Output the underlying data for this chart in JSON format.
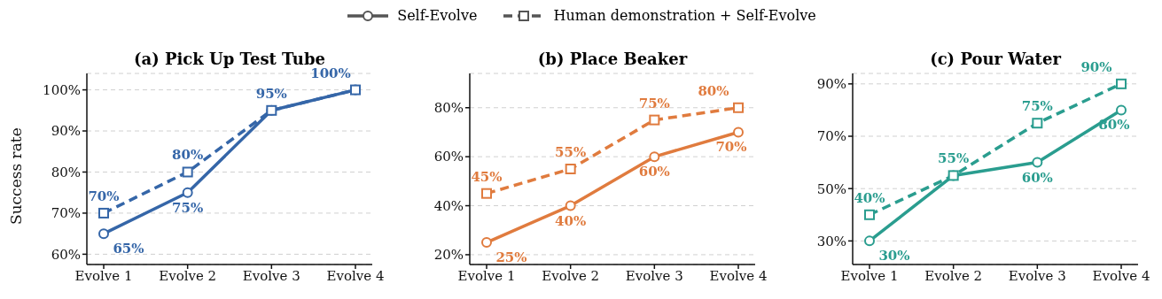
{
  "chart_data": [
    {
      "type": "line",
      "title": "(a) Pick Up Test Tube",
      "ylabel": "Success rate",
      "categories": [
        "Evolve 1",
        "Evolve 2",
        "Evolve 3",
        "Evolve 4"
      ],
      "ylim": [
        57.5,
        104
      ],
      "yticks": [
        {
          "value": 60,
          "label": "60%"
        },
        {
          "value": 70,
          "label": "70%"
        },
        {
          "value": 80,
          "label": "80%"
        },
        {
          "value": 90,
          "label": "90%"
        },
        {
          "value": 100,
          "label": "100%"
        }
      ],
      "grid": "y",
      "legend": "top",
      "series": [
        {
          "name": "Self-Evolve",
          "color": "#3566a8",
          "values": [
            65,
            75,
            95,
            100
          ],
          "marker": "circle",
          "line_style": "solid",
          "value_labels": [
            "65%",
            "75%",
            null,
            null
          ]
        },
        {
          "name": "Human demonstration + Self-Evolve",
          "color": "#3566a8",
          "values": [
            70,
            80,
            95,
            100
          ],
          "marker": "square",
          "line_style": "dashed",
          "value_labels": [
            "70%",
            "80%",
            "95%",
            "100%"
          ]
        }
      ]
    },
    {
      "type": "line",
      "title": "(b) Place Beaker",
      "categories": [
        "Evolve 1",
        "Evolve 2",
        "Evolve 3",
        "Evolve 4"
      ],
      "ylim": [
        16,
        94
      ],
      "yticks": [
        {
          "value": 20,
          "label": "20%"
        },
        {
          "value": 40,
          "label": "40%"
        },
        {
          "value": 60,
          "label": "60%"
        },
        {
          "value": 80,
          "label": "80%"
        }
      ],
      "grid": "y",
      "series": [
        {
          "color": "#e07b3e",
          "values": [
            25,
            40,
            60,
            70
          ],
          "marker": "circle",
          "line_style": "solid",
          "value_labels": [
            "25%",
            "40%",
            "60%",
            "70%"
          ]
        },
        {
          "color": "#e07b3e",
          "values": [
            45,
            55,
            75,
            80
          ],
          "marker": "square",
          "line_style": "dashed",
          "value_labels": [
            "45%",
            "55%",
            "75%",
            "80%"
          ]
        }
      ]
    },
    {
      "type": "line",
      "title": "(c) Pour Water",
      "categories": [
        "Evolve 1",
        "Evolve 2",
        "Evolve 3",
        "Evolve 4"
      ],
      "ylim": [
        21,
        94
      ],
      "yticks": [
        {
          "value": 30,
          "label": "30%"
        },
        {
          "value": 50,
          "label": "50%"
        },
        {
          "value": 70,
          "label": "70%"
        },
        {
          "value": 90,
          "label": "90%"
        }
      ],
      "grid": "y",
      "series": [
        {
          "color": "#2a9d8f",
          "values": [
            30,
            55,
            60,
            80
          ],
          "marker": "circle",
          "line_style": "solid",
          "value_labels": [
            "30%",
            null,
            "60%",
            "80%"
          ]
        },
        {
          "color": "#2a9d8f",
          "values": [
            40,
            55,
            75,
            90
          ],
          "marker": "square",
          "line_style": "dashed",
          "value_labels": [
            "40%",
            "55%",
            "75%",
            "90%"
          ]
        }
      ]
    }
  ]
}
